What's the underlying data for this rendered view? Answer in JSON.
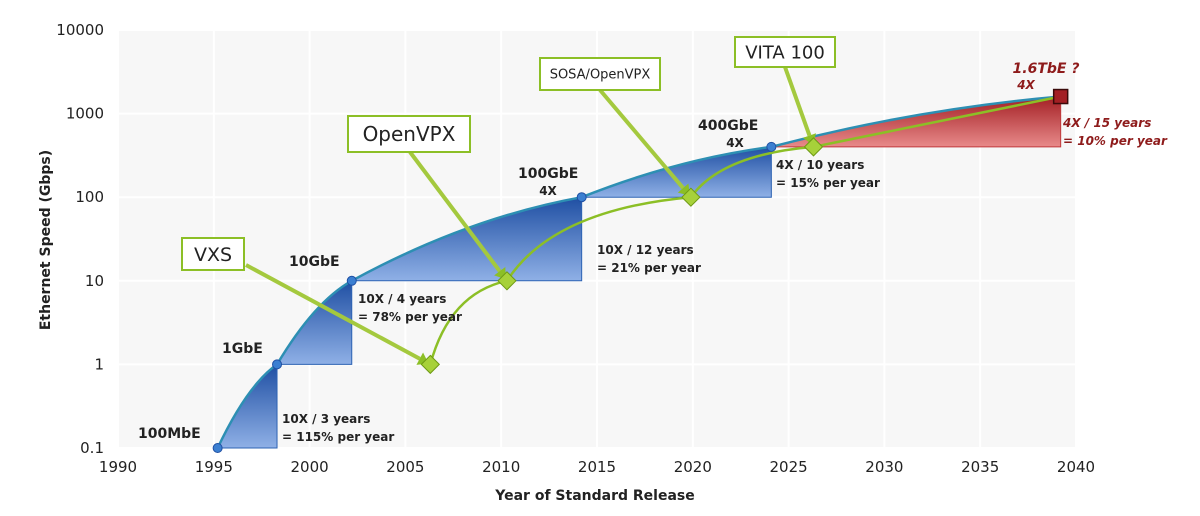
{
  "chart_data": {
    "type": "line",
    "xlabel": "Year of Standard Release",
    "ylabel": "Ethernet Speed (Gbps)",
    "xlim": [
      1990,
      2040
    ],
    "ylim": [
      0.1,
      10000
    ],
    "yscale": "log",
    "x_ticks": [
      1990,
      1995,
      2000,
      2005,
      2010,
      2015,
      2020,
      2025,
      2030,
      2035,
      2040
    ],
    "y_ticks": [
      {
        "value": 0.1,
        "label": "0.1"
      },
      {
        "value": 1,
        "label": "1"
      },
      {
        "value": 10,
        "label": "10"
      },
      {
        "value": 100,
        "label": "100"
      },
      {
        "value": 1000,
        "label": "1000"
      },
      {
        "value": 10000,
        "label": "10000"
      }
    ],
    "ethernet_standards": [
      {
        "name": "100MbE",
        "x": 1995.2,
        "y": 0.1
      },
      {
        "name": "1GbE",
        "x": 1998.3,
        "y": 1
      },
      {
        "name": "10GbE",
        "x": 2002.2,
        "y": 10
      },
      {
        "name": "100GbE",
        "x": 2014.2,
        "y": 100,
        "multiplier": "4X"
      },
      {
        "name": "400GbE",
        "x": 2024.1,
        "y": 400,
        "multiplier": "4X"
      },
      {
        "name": "1.6TbE ?",
        "x": 2039.2,
        "y": 1600,
        "multiplier": "4X"
      }
    ],
    "growth_segments": [
      {
        "line1": "10X / 3 years",
        "line2": "= 115% per year"
      },
      {
        "line1": "10X / 4 years",
        "line2": "= 78% per year"
      },
      {
        "line1": "10X / 12 years",
        "line2": "= 21% per year"
      },
      {
        "line1": "4X / 10 years",
        "line2": "= 15% per year"
      },
      {
        "line1": "4X / 15 years",
        "line2": "= 10% per year"
      }
    ],
    "embedded_standards": [
      {
        "name": "VXS",
        "x": 2006.3,
        "y": 1
      },
      {
        "name": "OpenVPX",
        "x": 2010.3,
        "y": 10
      },
      {
        "name": "SOSA/OpenVPX",
        "x": 2019.9,
        "y": 100
      },
      {
        "name": "VITA 100",
        "x": 2026.3,
        "y": 400
      }
    ],
    "colors": {
      "ethernet_curve": "#2d8fb3",
      "blue_fill": "#2d63b3",
      "red_fill": "#c0393b",
      "embedded_line": "#8cbf26",
      "embedded_marker": "#a7d13a",
      "callout_border": "#8cbf26"
    }
  }
}
